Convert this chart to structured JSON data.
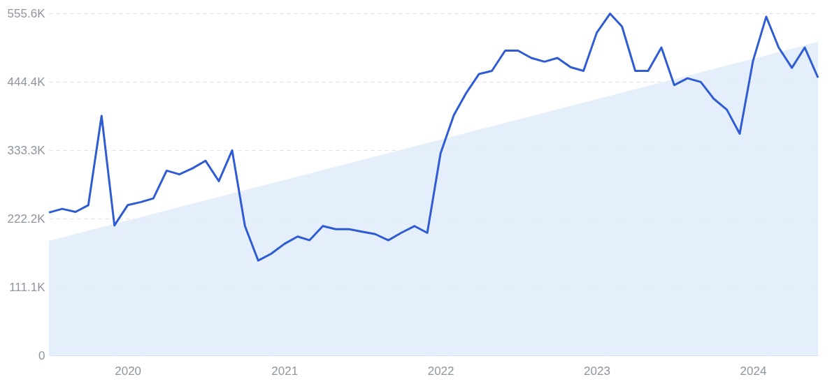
{
  "chart_data": {
    "type": "line",
    "x": [
      "2019-07",
      "2019-08",
      "2019-09",
      "2019-10",
      "2019-11",
      "2019-12",
      "2020-01",
      "2020-02",
      "2020-03",
      "2020-04",
      "2020-05",
      "2020-06",
      "2020-07",
      "2020-08",
      "2020-09",
      "2020-10",
      "2020-11",
      "2020-12",
      "2021-01",
      "2021-02",
      "2021-03",
      "2021-04",
      "2021-05",
      "2021-06",
      "2021-07",
      "2021-08",
      "2021-09",
      "2021-10",
      "2021-11",
      "2021-12",
      "2022-01",
      "2022-02",
      "2022-03",
      "2022-04",
      "2022-05",
      "2022-06",
      "2022-07",
      "2022-08",
      "2022-09",
      "2022-10",
      "2022-11",
      "2022-12",
      "2023-01",
      "2023-02",
      "2023-03",
      "2023-04",
      "2023-05",
      "2023-06",
      "2023-07",
      "2023-08",
      "2023-09",
      "2023-10",
      "2023-11",
      "2023-12",
      "2024-01",
      "2024-02",
      "2024-03",
      "2024-04",
      "2024-05",
      "2024-06"
    ],
    "series": [
      {
        "type": "area",
        "color": "#e2edfc",
        "x": [
          "2019-07",
          "2024-06"
        ],
        "values": [
          186,
          509
        ]
      },
      {
        "color": "#2f5bd3",
        "values": [
          232,
          238,
          233,
          244,
          389,
          211,
          244,
          249,
          255,
          300,
          294,
          304,
          316,
          283,
          333,
          210,
          154,
          165,
          181,
          193,
          187,
          210,
          205,
          205,
          201,
          197,
          187,
          199,
          210,
          199,
          328,
          390,
          425,
          457,
          462,
          495,
          495,
          483,
          477,
          483,
          468,
          462,
          524,
          555,
          534,
          462,
          462,
          500,
          439,
          450,
          444,
          417,
          399,
          360,
          478,
          550,
          500,
          467,
          500,
          451
        ]
      }
    ],
    "xlim": [
      "2019-07",
      "2024-06"
    ],
    "xticks": [
      {
        "value": "2020-01",
        "label": "2020"
      },
      {
        "value": "2021-01",
        "label": "2021"
      },
      {
        "value": "2022-01",
        "label": "2022"
      },
      {
        "value": "2023-01",
        "label": "2023"
      },
      {
        "value": "2024-01",
        "label": "2024"
      }
    ],
    "ylim": [
      0,
      555.6
    ],
    "yticks": [
      0,
      {
        "value": 111.1,
        "label": "111.1K"
      },
      {
        "value": 222.2,
        "label": "222.2K"
      },
      {
        "value": 333.3,
        "label": "333.3K"
      },
      {
        "value": 444.4,
        "label": "444.4K"
      },
      {
        "value": 555.6,
        "label": "555.6K"
      }
    ],
    "grid": "y",
    "line_style": "solid",
    "legend": false
  }
}
